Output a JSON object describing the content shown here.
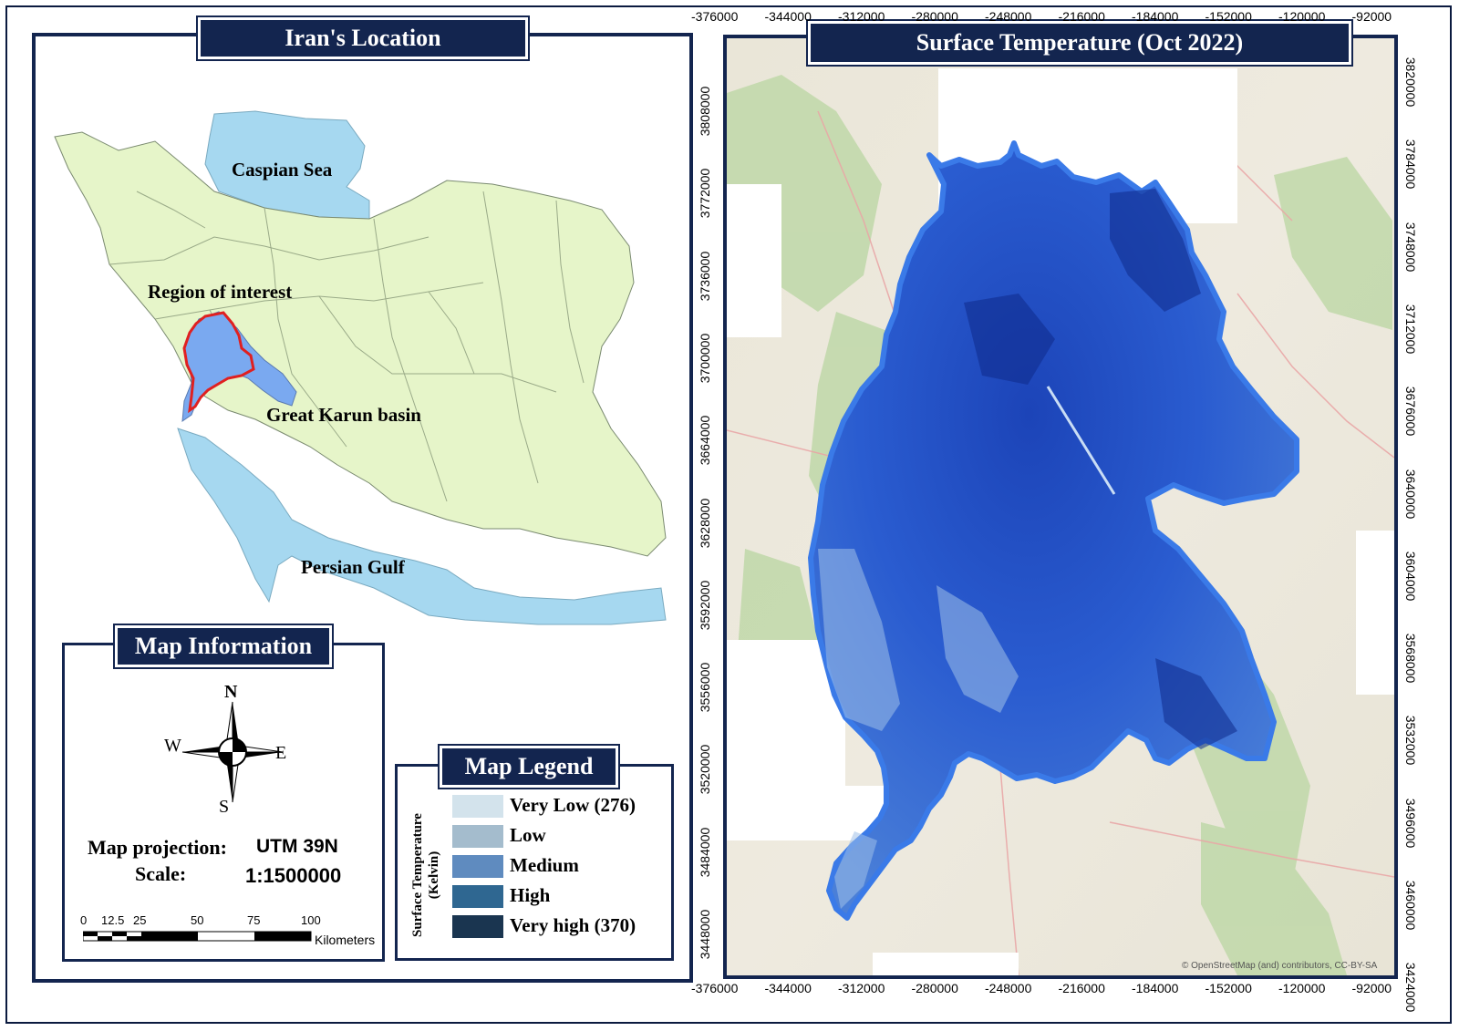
{
  "left_panel": {
    "title": "Iran's Location",
    "labels": {
      "caspian": "Caspian Sea",
      "region": "Region of interest",
      "karun": "Great Karun basin",
      "gulf": "Persian Gulf"
    }
  },
  "map_info": {
    "title": "Map Information",
    "compass": {
      "n": "N",
      "s": "S",
      "e": "E",
      "w": "W"
    },
    "projection_label": "Map projection:",
    "projection_value": "UTM 39N",
    "scale_label": "Scale:",
    "scale_value": "1:1500000",
    "scalebar": {
      "ticks": [
        "0",
        "12.5",
        "25",
        "50",
        "75",
        "100"
      ],
      "unit": "Kilometers"
    }
  },
  "legend": {
    "title": "Map Legend",
    "axis_title_line1": "Surface Temperature",
    "axis_title_line2": "(Kelvin)",
    "items": [
      {
        "label": "Very Low (276)",
        "color": "#d3e3ec"
      },
      {
        "label": "Low",
        "color": "#a4bccd"
      },
      {
        "label": "Medium",
        "color": "#5f8bbf"
      },
      {
        "label": "High",
        "color": "#2f6791"
      },
      {
        "label": "Very high (370)",
        "color": "#1a3550"
      }
    ]
  },
  "main_map": {
    "title": "Surface Temperature (Oct 2022)",
    "x_ticks": [
      "-376000",
      "-344000",
      "-312000",
      "-280000",
      "-248000",
      "-216000",
      "-184000",
      "-152000",
      "-120000",
      "-92000"
    ],
    "y_ticks": [
      "3808000",
      "3772000",
      "3736000",
      "3700000",
      "3664000",
      "3628000",
      "3592000",
      "3556000",
      "3520000",
      "3484000",
      "3448000"
    ],
    "y_ticks_right": [
      "3820000",
      "3784000",
      "3748000",
      "3712000",
      "3676000",
      "3640000",
      "3604000",
      "3568000",
      "3532000",
      "3496000",
      "3460000",
      "3424000"
    ],
    "attribution": "© OpenStreetMap (and) contributors, CC-BY-SA"
  },
  "colors": {
    "frame": "#13254f",
    "land": "#e6f5c9",
    "water": "#a6d8f0",
    "basin": "#7aa9f0",
    "roi_border": "#e02020",
    "temp_very_low": "#d3e3ec",
    "temp_very_high": "#1a3550"
  }
}
